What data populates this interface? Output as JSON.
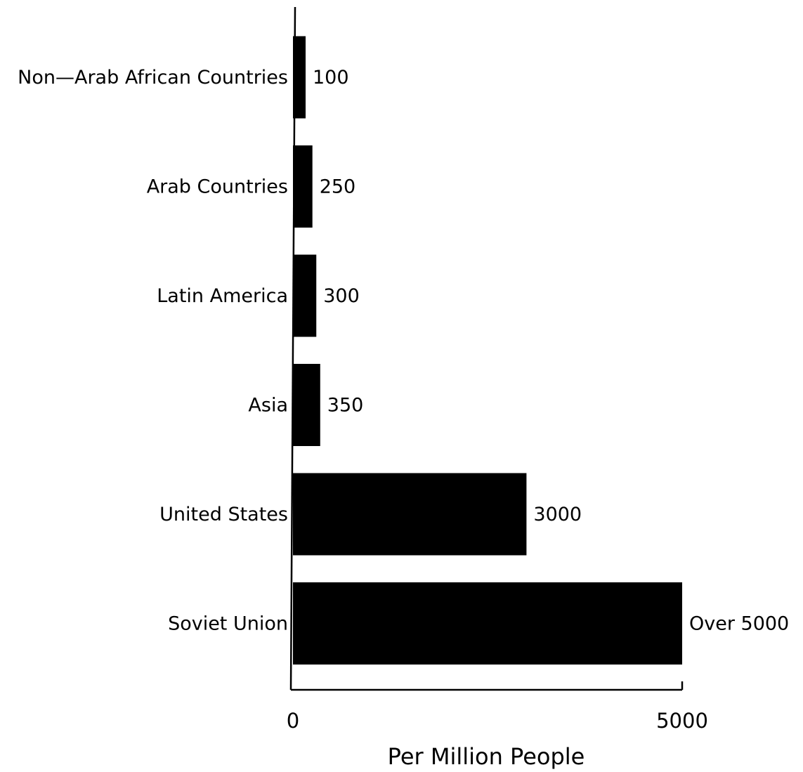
{
  "chart_data": {
    "type": "bar",
    "orientation": "horizontal",
    "categories": [
      "Non—Arab African Countries",
      "Arab Countries",
      "Latin America",
      "Asia",
      "United States",
      "Soviet Union"
    ],
    "values": [
      100,
      250,
      300,
      350,
      3000,
      5000
    ],
    "value_labels": [
      "100",
      "250",
      "300",
      "350",
      "3000",
      "Over 5000"
    ],
    "title": "",
    "xlabel": "Per Million People",
    "ylabel": "",
    "xlim": [
      0,
      5000
    ],
    "x_ticks": [
      {
        "value": 0,
        "label": "0"
      },
      {
        "value": 5000,
        "label": "5000"
      }
    ],
    "grid": false,
    "legend": "none",
    "bar_color": "#000000"
  }
}
